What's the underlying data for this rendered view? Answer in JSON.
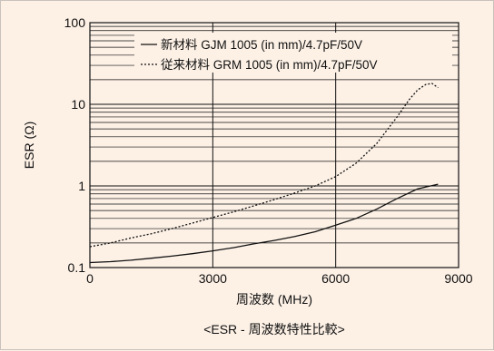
{
  "chart_data": {
    "type": "line",
    "caption": "<ESR - 周波数特性比較>",
    "xlabel": "周波数 (MHz)",
    "ylabel": "ESR (Ω)",
    "xlim": [
      0,
      9000
    ],
    "ylim": [
      0.1,
      100
    ],
    "yscale": "log",
    "grid": true,
    "legend_position": "top-right",
    "x_ticks": [
      "0",
      "3000",
      "6000",
      "9000"
    ],
    "y_ticks": [
      "0.1",
      "1",
      "10",
      "100"
    ],
    "series": [
      {
        "name": "新材料 GJM 1005 (in mm)/4.7pF/50V",
        "style": "solid",
        "x": [
          0,
          500,
          1000,
          1500,
          2000,
          2500,
          3000,
          3500,
          4000,
          4500,
          5000,
          5500,
          6000,
          6500,
          7000,
          7500,
          8000,
          8500
        ],
        "y": [
          0.115,
          0.118,
          0.123,
          0.13,
          0.138,
          0.148,
          0.16,
          0.175,
          0.195,
          0.215,
          0.24,
          0.275,
          0.33,
          0.4,
          0.52,
          0.7,
          0.92,
          1.05
        ]
      },
      {
        "name": "従来材料 GRM 1005 (in mm)/4.7pF/50V",
        "style": "dashed",
        "x": [
          0,
          500,
          1000,
          1500,
          2000,
          2500,
          3000,
          3500,
          4000,
          4500,
          5000,
          5500,
          6000,
          6500,
          7000,
          7500,
          7800,
          8000,
          8200,
          8350,
          8500
        ],
        "y": [
          0.18,
          0.2,
          0.23,
          0.26,
          0.3,
          0.35,
          0.41,
          0.48,
          0.57,
          0.68,
          0.82,
          1.0,
          1.3,
          1.9,
          3.3,
          7.0,
          11.5,
          15.0,
          17.5,
          18.0,
          16.0
        ]
      }
    ]
  }
}
